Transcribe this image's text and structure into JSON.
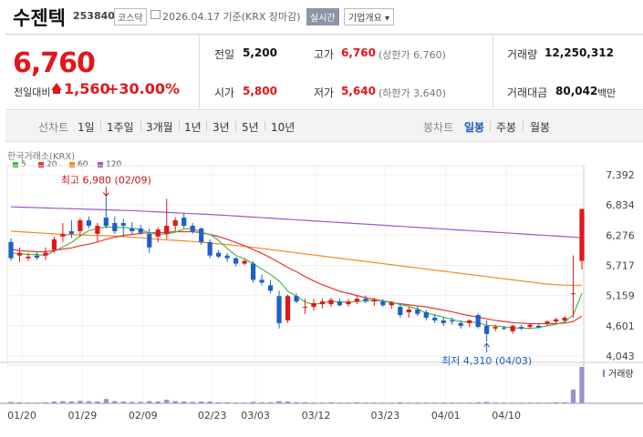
{
  "header": {
    "name": "수젠텍",
    "code": "253840",
    "market": "코스닥",
    "date": "2026.04.17 기준(KRX 장마감)",
    "realtime_label": "실시간",
    "company_info_label": "기업개요 ▾"
  },
  "summary": {
    "price": "6,760",
    "change_label": "전일대비",
    "change": "1,560",
    "change_pct": "+30.00%",
    "prev_label": "전일",
    "prev": "5,200",
    "open_label": "시가",
    "open": "5,800",
    "high_label": "고가",
    "high": "6,760",
    "high_note": "(상한가 6,760)",
    "low_label": "저가",
    "low": "5,640",
    "low_note": "(하한가 3,640)",
    "volume_label": "거래량",
    "volume": "12,250,312",
    "amount_label": "거래대금",
    "amount": "80,042",
    "amount_unit": "백만",
    "up_color": "#e4161a"
  },
  "periods": {
    "line_label": "선차트",
    "items": [
      "1일",
      "1주일",
      "3개월",
      "1년",
      "3년",
      "5년",
      "10년"
    ],
    "candle_label": "봉차트",
    "candle_items": [
      "일봉",
      "주봉",
      "월봉"
    ],
    "active_candle": "일봉"
  },
  "chart_data": {
    "type": "candlestick",
    "source_label": "한국거래소(KRX)",
    "legend": [
      {
        "name": "5",
        "color": "#4cb84c"
      },
      {
        "name": "20",
        "color": "#e8342a"
      },
      {
        "name": "60",
        "color": "#f08a24"
      },
      {
        "name": "120",
        "color": "#9b59c9"
      }
    ],
    "y_ticks": [
      "7,392",
      "6,834",
      "6,276",
      "5,717",
      "5,159",
      "4,601",
      "4,043"
    ],
    "ylim": [
      4043,
      7392
    ],
    "x_ticks": [
      "01/20",
      "01/29",
      "02/09",
      "02/23",
      "03/03",
      "03/12",
      "03/23",
      "04/01",
      "04/10"
    ],
    "annotations": {
      "max": "최고 6,980 (02/09)",
      "min": "최저 4,310 (04/03)"
    },
    "volume_label": "거래량",
    "candles": [
      {
        "o": 6150,
        "h": 6220,
        "l": 5800,
        "c": 5850
      },
      {
        "o": 5900,
        "h": 6050,
        "l": 5780,
        "c": 5950
      },
      {
        "o": 5850,
        "h": 5950,
        "l": 5800,
        "c": 5880
      },
      {
        "o": 5900,
        "h": 5960,
        "l": 5820,
        "c": 5860
      },
      {
        "o": 5900,
        "h": 6050,
        "l": 5820,
        "c": 5950
      },
      {
        "o": 6000,
        "h": 6250,
        "l": 5950,
        "c": 6200
      },
      {
        "o": 6250,
        "h": 6500,
        "l": 6150,
        "c": 6300
      },
      {
        "o": 6350,
        "h": 6550,
        "l": 6220,
        "c": 6300
      },
      {
        "o": 6350,
        "h": 6600,
        "l": 6250,
        "c": 6550
      },
      {
        "o": 6550,
        "h": 6620,
        "l": 6400,
        "c": 6450
      },
      {
        "o": 6300,
        "h": 6500,
        "l": 6150,
        "c": 6450
      },
      {
        "o": 6600,
        "h": 6980,
        "l": 6400,
        "c": 6450
      },
      {
        "o": 6500,
        "h": 6620,
        "l": 6300,
        "c": 6350
      },
      {
        "o": 6500,
        "h": 6580,
        "l": 6250,
        "c": 6450
      },
      {
        "o": 6400,
        "h": 6520,
        "l": 6300,
        "c": 6350
      },
      {
        "o": 6400,
        "h": 6470,
        "l": 6280,
        "c": 6320
      },
      {
        "o": 6300,
        "h": 6400,
        "l": 5950,
        "c": 6050
      },
      {
        "o": 6250,
        "h": 6420,
        "l": 6150,
        "c": 6380
      },
      {
        "o": 6300,
        "h": 6950,
        "l": 6200,
        "c": 6450
      },
      {
        "o": 6450,
        "h": 6600,
        "l": 6350,
        "c": 6550
      },
      {
        "o": 6600,
        "h": 6680,
        "l": 6400,
        "c": 6450
      },
      {
        "o": 6450,
        "h": 6500,
        "l": 6300,
        "c": 6350
      },
      {
        "o": 6400,
        "h": 6420,
        "l": 6100,
        "c": 6150
      },
      {
        "o": 6150,
        "h": 6200,
        "l": 5850,
        "c": 5900
      },
      {
        "o": 5950,
        "h": 6000,
        "l": 5850,
        "c": 5880
      },
      {
        "o": 5900,
        "h": 5950,
        "l": 5780,
        "c": 5850
      },
      {
        "o": 5850,
        "h": 5870,
        "l": 5700,
        "c": 5750
      },
      {
        "o": 5750,
        "h": 5830,
        "l": 5720,
        "c": 5800
      },
      {
        "o": 5750,
        "h": 5800,
        "l": 5400,
        "c": 5450
      },
      {
        "o": 5450,
        "h": 5550,
        "l": 5350,
        "c": 5400
      },
      {
        "o": 5350,
        "h": 5450,
        "l": 5200,
        "c": 5250
      },
      {
        "o": 5150,
        "h": 5250,
        "l": 4550,
        "c": 4650
      },
      {
        "o": 4700,
        "h": 5180,
        "l": 4650,
        "c": 5150
      },
      {
        "o": 5150,
        "h": 5200,
        "l": 5020,
        "c": 5050
      },
      {
        "o": 4950,
        "h": 5100,
        "l": 4820,
        "c": 4950
      },
      {
        "o": 4950,
        "h": 5100,
        "l": 4880,
        "c": 5020
      },
      {
        "o": 5000,
        "h": 5100,
        "l": 4920,
        "c": 5050
      },
      {
        "o": 5000,
        "h": 5120,
        "l": 4950,
        "c": 5080
      },
      {
        "o": 5050,
        "h": 5100,
        "l": 4960,
        "c": 4980
      },
      {
        "o": 5000,
        "h": 5100,
        "l": 4950,
        "c": 5050
      },
      {
        "o": 5050,
        "h": 5150,
        "l": 5000,
        "c": 5100
      },
      {
        "o": 5100,
        "h": 5160,
        "l": 5020,
        "c": 5060
      },
      {
        "o": 5050,
        "h": 5120,
        "l": 4970,
        "c": 5080
      },
      {
        "o": 5050,
        "h": 5100,
        "l": 4950,
        "c": 4980
      },
      {
        "o": 4980,
        "h": 5050,
        "l": 4920,
        "c": 5030
      },
      {
        "o": 4950,
        "h": 5000,
        "l": 4750,
        "c": 4800
      },
      {
        "o": 4850,
        "h": 4950,
        "l": 4750,
        "c": 4900
      },
      {
        "o": 4900,
        "h": 4960,
        "l": 4780,
        "c": 4820
      },
      {
        "o": 4850,
        "h": 4900,
        "l": 4700,
        "c": 4750
      },
      {
        "o": 4750,
        "h": 4820,
        "l": 4650,
        "c": 4700
      },
      {
        "o": 4700,
        "h": 4760,
        "l": 4600,
        "c": 4650
      },
      {
        "o": 4700,
        "h": 4760,
        "l": 4620,
        "c": 4680
      },
      {
        "o": 4650,
        "h": 4700,
        "l": 4550,
        "c": 4600
      },
      {
        "o": 4650,
        "h": 4720,
        "l": 4580,
        "c": 4700
      },
      {
        "o": 4800,
        "h": 4830,
        "l": 4550,
        "c": 4580
      },
      {
        "o": 4600,
        "h": 4700,
        "l": 4310,
        "c": 4450
      },
      {
        "o": 4550,
        "h": 4620,
        "l": 4500,
        "c": 4580
      },
      {
        "o": 4560,
        "h": 4600,
        "l": 4520,
        "c": 4550
      },
      {
        "o": 4500,
        "h": 4620,
        "l": 4450,
        "c": 4600
      },
      {
        "o": 4580,
        "h": 4620,
        "l": 4520,
        "c": 4550
      },
      {
        "o": 4580,
        "h": 4640,
        "l": 4540,
        "c": 4620
      },
      {
        "o": 4600,
        "h": 4630,
        "l": 4550,
        "c": 4570
      },
      {
        "o": 4650,
        "h": 4700,
        "l": 4600,
        "c": 4680
      },
      {
        "o": 4680,
        "h": 4750,
        "l": 4640,
        "c": 4720
      },
      {
        "o": 4700,
        "h": 4780,
        "l": 4660,
        "c": 4750
      },
      {
        "o": 5200,
        "h": 5900,
        "l": 4750,
        "c": 5200
      },
      {
        "o": 5800,
        "h": 6760,
        "l": 5640,
        "c": 6760
      }
    ],
    "ma5": [
      5950,
      5930,
      5920,
      5920,
      5900,
      5980,
      6060,
      6140,
      6260,
      6360,
      6400,
      6430,
      6420,
      6420,
      6400,
      6380,
      6320,
      6290,
      6300,
      6330,
      6390,
      6400,
      6330,
      6290,
      6180,
      6030,
      5900,
      5840,
      5750,
      5650,
      5550,
      5430,
      5240,
      5150,
      5040,
      4990,
      5030,
      5050,
      5040,
      5040,
      5050,
      5060,
      5070,
      5060,
      5040,
      4990,
      4960,
      4910,
      4840,
      4800,
      4760,
      4720,
      4680,
      4670,
      4660,
      4610,
      4600,
      4580,
      4560,
      4560,
      4550,
      4570,
      4600,
      4630,
      4670,
      4800,
      5200
    ],
    "ma20": [
      6020,
      5990,
      5980,
      5970,
      5970,
      5990,
      6020,
      6040,
      6080,
      6110,
      6150,
      6200,
      6240,
      6270,
      6290,
      6310,
      6320,
      6320,
      6330,
      6340,
      6340,
      6340,
      6320,
      6290,
      6250,
      6200,
      6140,
      6080,
      6010,
      5940,
      5860,
      5770,
      5680,
      5600,
      5510,
      5430,
      5360,
      5300,
      5240,
      5200,
      5160,
      5120,
      5090,
      5060,
      5030,
      5010,
      4990,
      4970,
      4950,
      4920,
      4890,
      4860,
      4820,
      4790,
      4760,
      4730,
      4700,
      4680,
      4660,
      4650,
      4640,
      4640,
      4640,
      4640,
      4650,
      4680,
      4780
    ],
    "ma60": [
      6350,
      6340,
      6330,
      6320,
      6310,
      6300,
      6290,
      6285,
      6280,
      6275,
      6270,
      6265,
      6260,
      6250,
      6240,
      6230,
      6215,
      6200,
      6190,
      6180,
      6170,
      6160,
      6145,
      6130,
      6115,
      6100,
      6085,
      6070,
      6050,
      6030,
      6010,
      5990,
      5970,
      5950,
      5930,
      5910,
      5890,
      5870,
      5850,
      5830,
      5810,
      5790,
      5770,
      5750,
      5730,
      5710,
      5690,
      5670,
      5650,
      5630,
      5610,
      5590,
      5570,
      5550,
      5530,
      5510,
      5490,
      5470,
      5450,
      5430,
      5410,
      5390,
      5370,
      5360,
      5350,
      5350,
      5350
    ],
    "ma120": [
      6800,
      6795,
      6790,
      6785,
      6780,
      6775,
      6770,
      6765,
      6760,
      6755,
      6750,
      6745,
      6740,
      6735,
      6730,
      6722,
      6714,
      6706,
      6698,
      6690,
      6682,
      6674,
      6666,
      6658,
      6650,
      6640,
      6630,
      6620,
      6610,
      6600,
      6590,
      6580,
      6570,
      6560,
      6550,
      6540,
      6530,
      6520,
      6510,
      6500,
      6490,
      6480,
      6470,
      6460,
      6450,
      6440,
      6430,
      6420,
      6410,
      6400,
      6390,
      6380,
      6370,
      6360,
      6350,
      6340,
      6330,
      6320,
      6310,
      6300,
      6290,
      6280,
      6270,
      6260,
      6250,
      6240,
      6230
    ],
    "volume": [
      0.04,
      0.03,
      0.02,
      0.02,
      0.03,
      0.05,
      0.06,
      0.05,
      0.07,
      0.06,
      0.05,
      0.12,
      0.06,
      0.05,
      0.04,
      0.04,
      0.06,
      0.05,
      0.1,
      0.06,
      0.05,
      0.04,
      0.05,
      0.05,
      0.03,
      0.03,
      0.02,
      0.02,
      0.04,
      0.03,
      0.03,
      0.06,
      0.05,
      0.03,
      0.03,
      0.02,
      0.02,
      0.03,
      0.02,
      0.02,
      0.03,
      0.02,
      0.02,
      0.02,
      0.02,
      0.03,
      0.02,
      0.02,
      0.02,
      0.02,
      0.02,
      0.02,
      0.02,
      0.02,
      0.03,
      0.04,
      0.02,
      0.02,
      0.02,
      0.02,
      0.02,
      0.02,
      0.02,
      0.03,
      0.03,
      0.38,
      1.0
    ]
  }
}
